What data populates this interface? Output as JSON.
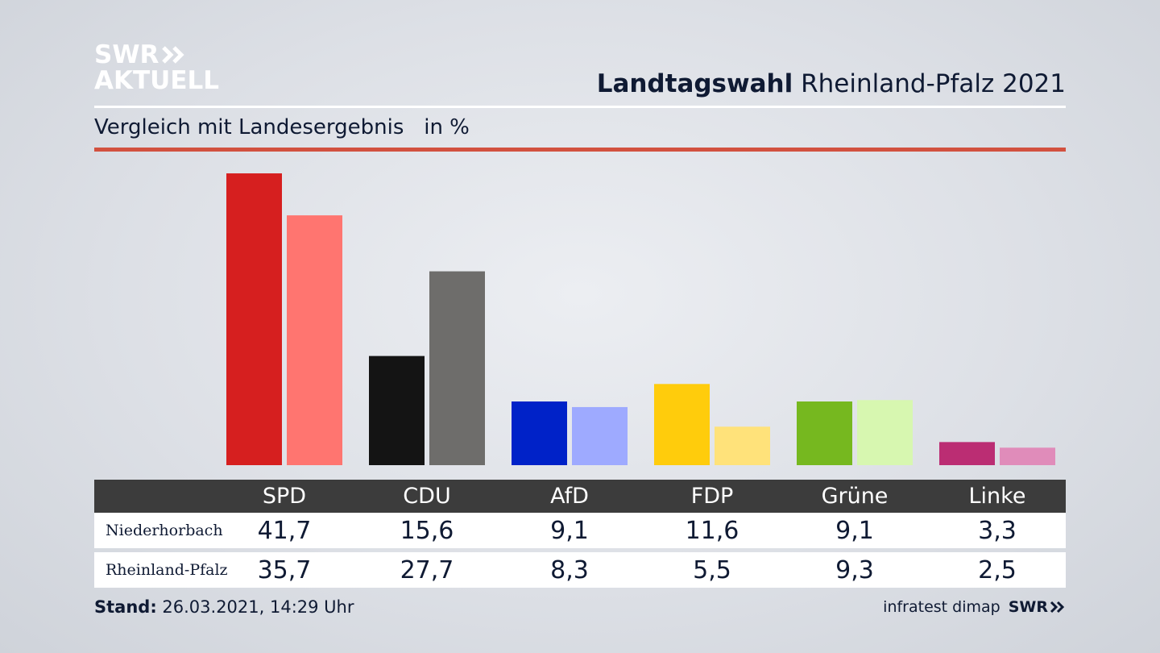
{
  "brand": {
    "line1": "SWR",
    "line2": "AKTUELL"
  },
  "header": {
    "title_bold": "Landtagswahl",
    "title_rest": " Rheinland-Pfalz 2021"
  },
  "subtitle": {
    "text": "Vergleich mit Landesergebnis",
    "unit": "in %"
  },
  "footer": {
    "stand_label": "Stand:",
    "stand_value": " 26.03.2021, 14:29 Uhr",
    "source": "infratest dimap",
    "source_brand": "SWR"
  },
  "colors": {
    "accent_rule": "#d2513f",
    "table_header": "#3c3c3c"
  },
  "chart_data": {
    "type": "bar",
    "categories": [
      "SPD",
      "CDU",
      "AfD",
      "FDP",
      "Grüne",
      "Linke"
    ],
    "series": [
      {
        "name": "Niederhorbach",
        "values": [
          41.7,
          15.6,
          9.1,
          11.6,
          9.1,
          3.3
        ]
      },
      {
        "name": "Rheinland-Pfalz",
        "values": [
          35.7,
          27.7,
          8.3,
          5.5,
          9.3,
          2.5
        ]
      }
    ],
    "value_labels": {
      "Niederhorbach": [
        "41,7",
        "15,6",
        "9,1",
        "11,6",
        "9,1",
        "3,3"
      ],
      "Rheinland-Pfalz": [
        "35,7",
        "27,7",
        "8,3",
        "5,5",
        "9,3",
        "2,5"
      ]
    },
    "colors": {
      "Niederhorbach": [
        "#d61f1f",
        "#141414",
        "#0022c8",
        "#ffcc0c",
        "#76b81f",
        "#bb2d73"
      ],
      "Rheinland-Pfalz": [
        "#ff7570",
        "#6e6d6b",
        "#9eaaff",
        "#ffe27a",
        "#d7f7b0",
        "#e08cba"
      ]
    },
    "grid": false
  }
}
